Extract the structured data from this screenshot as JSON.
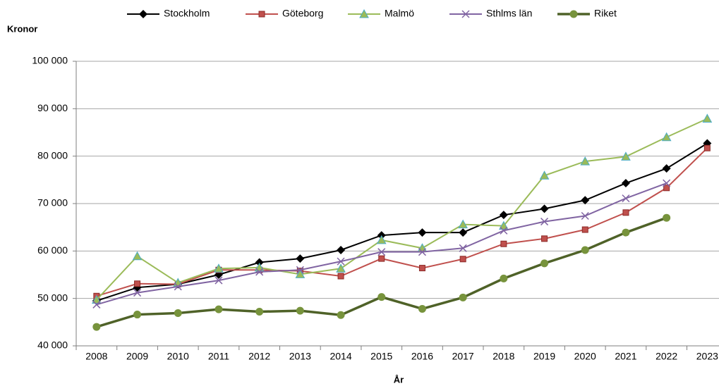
{
  "chart_data": {
    "type": "line",
    "y_label": "Kronor",
    "x_label": "År",
    "categories": [
      "2008",
      "2009",
      "2010",
      "2011",
      "2012",
      "2013",
      "2014",
      "2015",
      "2016",
      "2017",
      "2018",
      "2019",
      "2020",
      "2021",
      "2022",
      "2023"
    ],
    "ylim": [
      40000,
      100000
    ],
    "yticks": [
      {
        "value": 40000,
        "label": "40 000"
      },
      {
        "value": 50000,
        "label": "50 000"
      },
      {
        "value": 60000,
        "label": "60 000"
      },
      {
        "value": 70000,
        "label": "70 000"
      },
      {
        "value": 80000,
        "label": "80 000"
      },
      {
        "value": 90000,
        "label": "90 000"
      },
      {
        "value": 100000,
        "label": "100 000"
      }
    ],
    "grid": true,
    "legend": "top",
    "series": [
      {
        "name": "Stockholm",
        "color": "#000000",
        "marker": "diamond",
        "values": [
          49500,
          52300,
          53000,
          55000,
          57600,
          58400,
          60200,
          63300,
          63900,
          63900,
          67600,
          68900,
          70700,
          74300,
          77400,
          82700
        ]
      },
      {
        "name": "Göteborg",
        "color": "#c0504d",
        "marker": "square",
        "values": [
          50500,
          53100,
          53000,
          56000,
          56000,
          55800,
          54700,
          58400,
          56400,
          58300,
          61500,
          62600,
          64500,
          68100,
          73300,
          81700
        ]
      },
      {
        "name": "Malmö",
        "color": "#9bbb59",
        "marker": "triangle",
        "values": [
          49700,
          58900,
          53300,
          56300,
          56500,
          55100,
          56300,
          62300,
          60600,
          65600,
          65300,
          75900,
          78900,
          79900,
          84000,
          87900
        ]
      },
      {
        "name": "Sthlms län",
        "color": "#8064a2",
        "marker": "cross",
        "values": [
          48700,
          51200,
          52500,
          53800,
          55600,
          56000,
          57800,
          59800,
          59800,
          60600,
          64300,
          66200,
          67400,
          71100,
          74300,
          null
        ]
      },
      {
        "name": "Riket",
        "color": "#4f6228",
        "marker": "circle",
        "values": [
          44000,
          46600,
          46900,
          47700,
          47200,
          47400,
          46500,
          50300,
          47800,
          50200,
          54200,
          57400,
          60200,
          63900,
          67000,
          null
        ]
      }
    ]
  }
}
